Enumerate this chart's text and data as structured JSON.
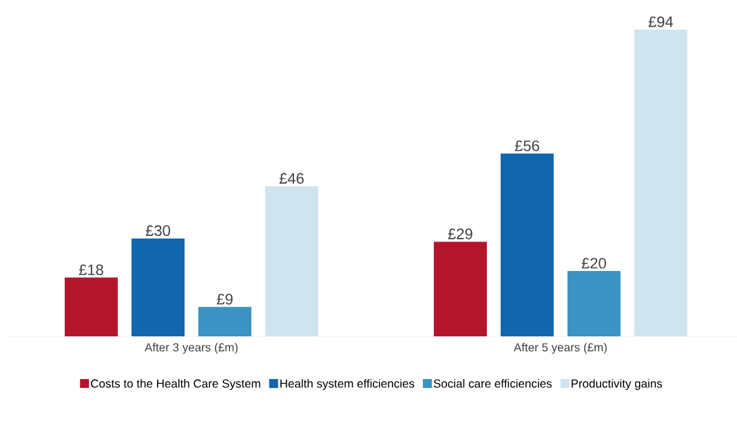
{
  "chart_data": {
    "type": "bar",
    "categories": [
      "After 3 years (£m)",
      "After 5 years (£m)"
    ],
    "legend": "bottom",
    "series": [
      {
        "name": "Costs to the Health Care System",
        "color": "#b5152b",
        "values": [
          18,
          29
        ],
        "value_labels": [
          "£18",
          "£29"
        ]
      },
      {
        "name": "Health system efficiencies",
        "color": "#1166ae",
        "values": [
          30,
          56
        ],
        "value_labels": [
          "£30",
          "£56"
        ]
      },
      {
        "name": "Social care efficiencies",
        "color": "#3a93c3",
        "values": [
          9,
          20
        ],
        "value_labels": [
          "£9",
          "£20"
        ]
      },
      {
        "name": "Productivity gains",
        "color": "#d0e4f0",
        "values": [
          46,
          94
        ],
        "value_labels": [
          "£46",
          "£94"
        ]
      }
    ]
  }
}
